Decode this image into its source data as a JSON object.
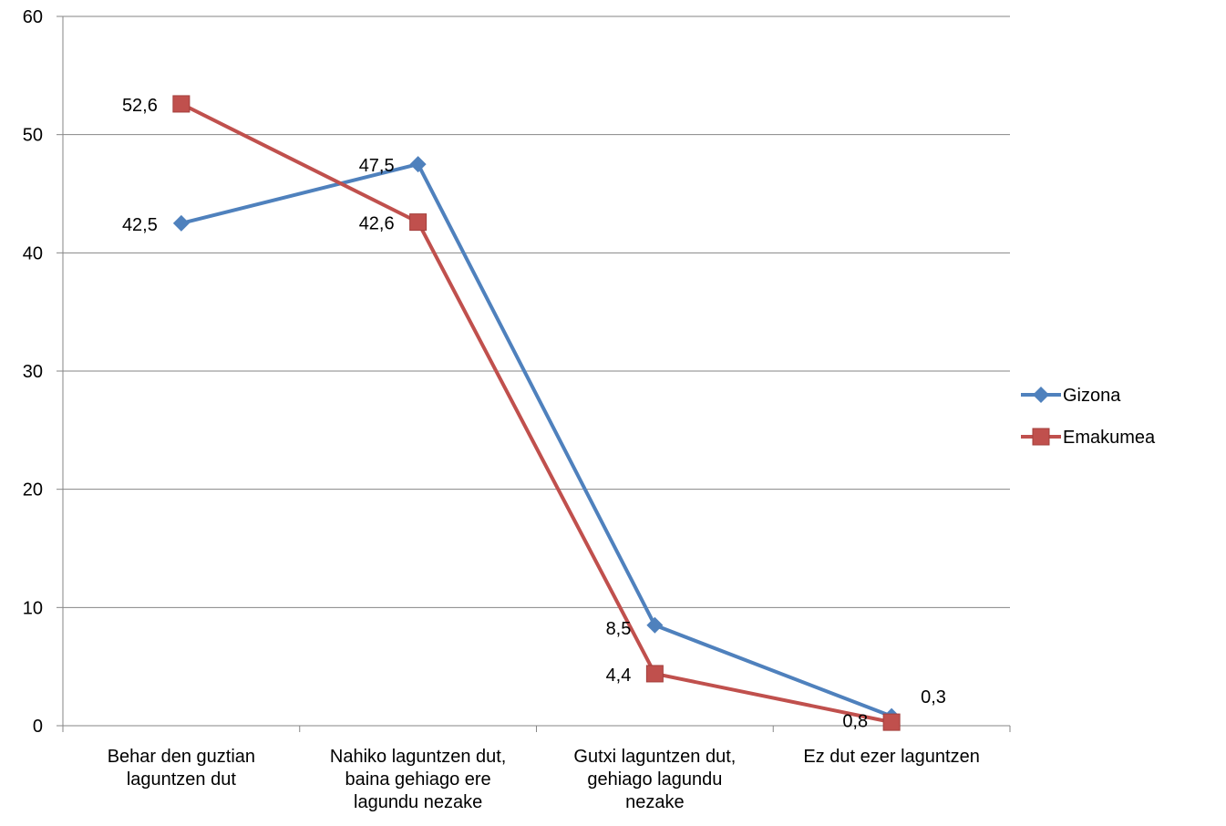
{
  "chart_data": {
    "type": "line",
    "categories": [
      [
        "Behar den guztian",
        "laguntzen dut"
      ],
      [
        "Nahiko laguntzen dut,",
        "baina gehiago ere",
        "lagundu nezake"
      ],
      [
        "Gutxi laguntzen dut,",
        "gehiago lagundu",
        "nezake"
      ],
      [
        "Ez dut ezer laguntzen"
      ]
    ],
    "ylim": [
      0,
      60
    ],
    "yticks": [
      0,
      10,
      20,
      30,
      40,
      50,
      60
    ],
    "ytick_labels": [
      "0",
      "10",
      "20",
      "30",
      "40",
      "50",
      "60"
    ],
    "grid": true,
    "legend_position": "right",
    "series": [
      {
        "name": "Gizona",
        "color": "#4F81BD",
        "marker": "diamond",
        "values": [
          42.5,
          47.5,
          8.5,
          0.8
        ],
        "labels": [
          "42,5",
          "47,5",
          "8,5",
          "0,8"
        ]
      },
      {
        "name": "Emakumea",
        "color": "#C0504D",
        "marker": "square",
        "values": [
          52.6,
          42.6,
          4.4,
          0.3
        ],
        "labels": [
          "52,6",
          "42,6",
          "4,4",
          "0,3"
        ]
      }
    ]
  }
}
